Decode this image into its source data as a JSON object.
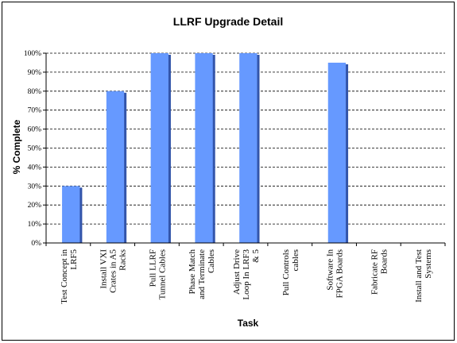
{
  "chart_data": {
    "type": "bar",
    "title": "LLRF Upgrade Detail",
    "xlabel": "Task",
    "ylabel": "% Complete",
    "ylim": [
      0,
      100
    ],
    "yticks": [
      "0%",
      "10%",
      "20%",
      "30%",
      "40%",
      "50%",
      "60%",
      "70%",
      "80%",
      "90%",
      "100%"
    ],
    "grid": "horizontal dashed",
    "legend": "none",
    "bar_color": "#6699ff",
    "categories": [
      [
        "Test Concept in",
        "LRF5"
      ],
      [
        "Install VXI",
        "Crates in A5",
        "Racks"
      ],
      [
        "Pull LLRF",
        "Tunnel Cables"
      ],
      [
        "Phase Match",
        "and Terminate",
        "Cables"
      ],
      [
        "Adjust Drive",
        "Loop In LRF3",
        "& 5"
      ],
      [
        "Pull Controls",
        "cables"
      ],
      [
        "Software In",
        "FPGA Boards"
      ],
      [
        "Fabricate RF",
        "Boards"
      ],
      [
        "Install and Test",
        "Systems"
      ]
    ],
    "values": [
      30,
      80,
      100,
      100,
      100,
      0,
      95,
      0,
      0
    ]
  }
}
